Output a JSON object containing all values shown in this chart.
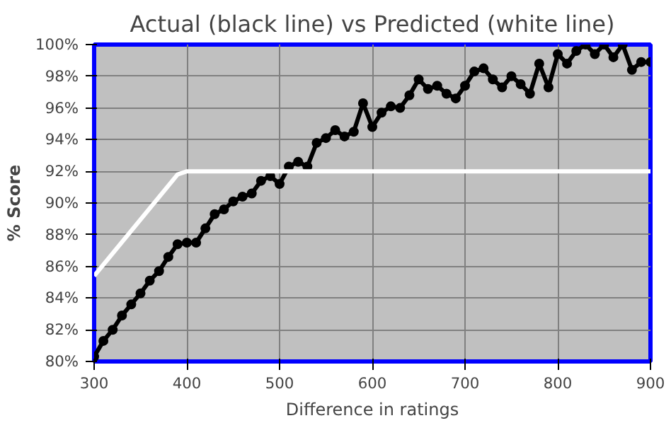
{
  "chart_data": {
    "type": "line",
    "title": "Actual (black line) vs Predicted (white line)",
    "xlabel": "Difference in ratings",
    "ylabel": "% Score",
    "xlim": [
      300,
      900
    ],
    "xticks": [
      300,
      400,
      500,
      600,
      700,
      800,
      900
    ],
    "ylim": [
      80,
      100
    ],
    "yticks": [
      {
        "value": 80,
        "label": "80%"
      },
      {
        "value": 82,
        "label": "82%"
      },
      {
        "value": 84,
        "label": "84%"
      },
      {
        "value": 86,
        "label": "86%"
      },
      {
        "value": 88,
        "label": "88%"
      },
      {
        "value": 90,
        "label": "90%"
      },
      {
        "value": 92,
        "label": "92%"
      },
      {
        "value": 94,
        "label": "94%"
      },
      {
        "value": 96,
        "label": "96%"
      },
      {
        "value": 98,
        "label": "98%"
      },
      {
        "value": 100,
        "label": "100%"
      }
    ],
    "grid": true,
    "line_style": "solid",
    "series": [
      {
        "color": "#000000",
        "marker": "circle",
        "x": [
          300,
          310,
          320,
          330,
          340,
          350,
          360,
          370,
          380,
          390,
          400,
          410,
          420,
          430,
          440,
          450,
          460,
          470,
          480,
          490,
          500,
          510,
          520,
          530,
          540,
          550,
          560,
          570,
          580,
          590,
          600,
          610,
          620,
          630,
          640,
          650,
          660,
          670,
          680,
          690,
          700,
          710,
          720,
          730,
          740,
          750,
          760,
          770,
          780,
          790,
          800,
          810,
          820,
          830,
          840,
          850,
          860,
          870,
          880,
          890,
          900
        ],
        "values": [
          80.3,
          81.3,
          82.0,
          82.9,
          83.6,
          84.3,
          85.1,
          85.7,
          86.6,
          87.4,
          87.5,
          87.5,
          88.4,
          89.3,
          89.6,
          90.1,
          90.4,
          90.6,
          91.4,
          91.7,
          91.2,
          92.3,
          92.6,
          92.3,
          93.8,
          94.1,
          94.6,
          94.2,
          94.5,
          96.3,
          94.8,
          95.7,
          96.1,
          96.0,
          96.8,
          97.8,
          97.2,
          97.4,
          96.9,
          96.6,
          97.4,
          98.3,
          98.5,
          97.8,
          97.3,
          98.0,
          97.5,
          96.9,
          98.8,
          97.3,
          99.4,
          98.8,
          99.6,
          100.0,
          99.4,
          100.0,
          99.2,
          100.0,
          98.4,
          98.9,
          98.9
        ]
      },
      {
        "color": "#ffffff",
        "marker": "none",
        "x": [
          300,
          390,
          400,
          900
        ],
        "values": [
          85.4,
          91.8,
          92,
          92
        ]
      }
    ]
  }
}
